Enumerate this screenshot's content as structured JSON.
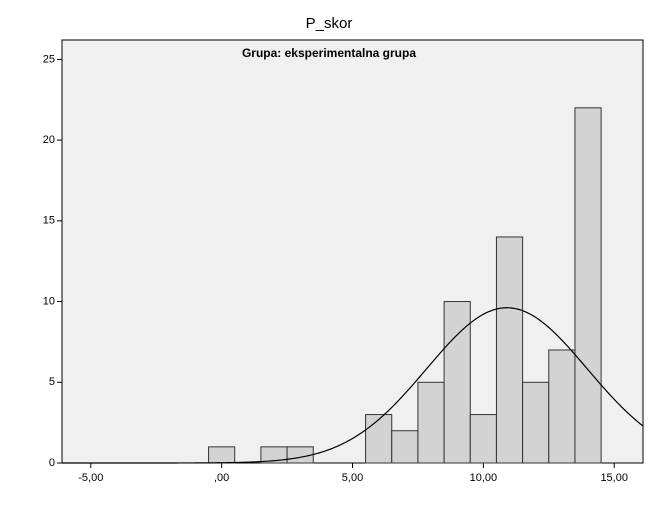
{
  "chart_data": {
    "type": "histogram",
    "title": "P_skor",
    "subtitle": "Grupa: eksperimentalna grupa",
    "bins": [
      -0.5,
      0.5,
      1.5,
      2.5,
      3.5,
      4.5,
      5.5,
      6.5,
      7.5,
      8.5,
      9.5,
      10.5,
      11.5,
      12.5,
      13.5,
      14.5
    ],
    "values": [
      1,
      0,
      1,
      1,
      0,
      0,
      3,
      2,
      5,
      10,
      3,
      14,
      5,
      7,
      22
    ],
    "color": "#d3d3d3",
    "normal_curve": {
      "mean": 10.9,
      "sd": 3.07
    },
    "xlim": [
      -6.1,
      16.1
    ],
    "xticks": [
      {
        "value": -5,
        "label": "-5,00"
      },
      {
        "value": 0,
        "label": ",00"
      },
      {
        "value": 5,
        "label": "5,00"
      },
      {
        "value": 10,
        "label": "10,00"
      },
      {
        "value": 15,
        "label": "15,00"
      }
    ],
    "ylim": [
      0,
      26.2
    ],
    "yticks": [
      0,
      5,
      10,
      15,
      20,
      25
    ],
    "grid": false
  }
}
